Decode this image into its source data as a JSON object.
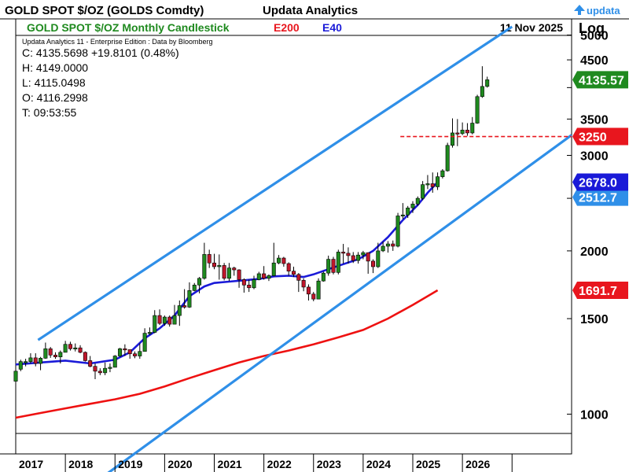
{
  "header": {
    "security_title": "GOLD SPOT $/OZ (GOLDS Comdty)",
    "app_title": "Updata Analytics",
    "logo_text": "updata"
  },
  "subheader": {
    "chart_title": "GOLD SPOT $/OZ Monthly Candlestick",
    "legend_e200": "E200",
    "legend_e40": "E40",
    "date": "11 Nov 2025",
    "scale_label": "Log"
  },
  "info": {
    "edition": "Updata Analytics 11 - Enterprise Edition : Data by Bloomberg",
    "close": "C: 4135.5698  +19.8101 (0.48%)",
    "high": "H: 4149.0000",
    "low": "L: 4115.0498",
    "open": "O: 4116.2998",
    "time": "T: 09:53:55"
  },
  "colors": {
    "up": "#1f8a1f",
    "down": "#c0162b",
    "e200": "#ee1111",
    "e40": "#1a1ad8",
    "channel": "#2f8fe8",
    "price_tag": "#1f8a1f",
    "hline_tag": "#e8161e",
    "e40_tag": "#1a1ad8",
    "channel_tag": "#2f8fe8",
    "e200_tag": "#e8161e",
    "title_green": "#1f8a1f",
    "e200_text": "#e8161e",
    "e40_text": "#1a1ad8"
  },
  "chart_data": {
    "type": "candlestick",
    "scale": "log",
    "ylim": [
      900,
      5500
    ],
    "y_ticks": [
      1000,
      1500,
      2000,
      2500,
      3000,
      3500,
      4000,
      4500,
      5000
    ],
    "y_tick_labels": [
      "1000",
      "1500",
      "2000",
      "",
      "3000",
      "3500",
      "",
      "4500",
      "5000"
    ],
    "x_labels": [
      "2017",
      "2018",
      "2019",
      "2020",
      "2021",
      "2022",
      "2023",
      "2024",
      "2025",
      "2026"
    ],
    "x_start": 2017.0,
    "x_end": 2028.2,
    "last_price": 4135.57,
    "last_price_label": "4135.57",
    "horizontal_line": {
      "value": 3250,
      "label": "3250",
      "x_from": 2024.75
    },
    "e40_last": 2678.0,
    "e40_label": "2678.0",
    "channel_tag_value": 2512.7,
    "channel_tag_label": "2512.7",
    "e200_last": 1691.7,
    "e200_label": "1691.7",
    "channel_upper": [
      [
        2017.45,
        1370
      ],
      [
        2027.0,
        5180
      ]
    ],
    "channel_lower": [
      [
        2018.7,
        760
      ],
      [
        2028.2,
        3270
      ]
    ],
    "e40_points": [
      [
        2017.0,
        1235
      ],
      [
        2017.5,
        1245
      ],
      [
        2018.0,
        1255
      ],
      [
        2018.5,
        1240
      ],
      [
        2019.0,
        1260
      ],
      [
        2019.3,
        1300
      ],
      [
        2019.6,
        1380
      ],
      [
        2019.9,
        1440
      ],
      [
        2020.2,
        1520
      ],
      [
        2020.5,
        1650
      ],
      [
        2020.8,
        1720
      ],
      [
        2021.0,
        1745
      ],
      [
        2021.3,
        1755
      ],
      [
        2021.6,
        1765
      ],
      [
        2021.9,
        1775
      ],
      [
        2022.2,
        1795
      ],
      [
        2022.5,
        1800
      ],
      [
        2022.8,
        1790
      ],
      [
        2023.0,
        1810
      ],
      [
        2023.3,
        1850
      ],
      [
        2023.6,
        1890
      ],
      [
        2023.9,
        1930
      ],
      [
        2024.2,
        2000
      ],
      [
        2024.5,
        2120
      ],
      [
        2024.8,
        2280
      ],
      [
        2025.1,
        2430
      ],
      [
        2025.3,
        2560
      ],
      [
        2025.5,
        2678
      ]
    ],
    "e200_points": [
      [
        2017.0,
        985
      ],
      [
        2017.5,
        1005
      ],
      [
        2018.0,
        1025
      ],
      [
        2018.5,
        1045
      ],
      [
        2019.0,
        1065
      ],
      [
        2019.5,
        1090
      ],
      [
        2020.0,
        1125
      ],
      [
        2020.5,
        1165
      ],
      [
        2021.0,
        1205
      ],
      [
        2021.5,
        1245
      ],
      [
        2022.0,
        1280
      ],
      [
        2022.5,
        1310
      ],
      [
        2023.0,
        1345
      ],
      [
        2023.5,
        1385
      ],
      [
        2024.0,
        1430
      ],
      [
        2024.5,
        1500
      ],
      [
        2025.0,
        1590
      ],
      [
        2025.3,
        1650
      ],
      [
        2025.5,
        1691.7
      ]
    ],
    "candles": [
      [
        2017.0,
        1150,
        1200,
        1140,
        1210
      ],
      [
        2017.1,
        1210,
        1250,
        1200,
        1260
      ],
      [
        2017.2,
        1250,
        1250,
        1225,
        1265
      ],
      [
        2017.3,
        1250,
        1270,
        1240,
        1295
      ],
      [
        2017.4,
        1270,
        1240,
        1225,
        1295
      ],
      [
        2017.5,
        1240,
        1268,
        1205,
        1275
      ],
      [
        2017.6,
        1268,
        1320,
        1265,
        1355
      ],
      [
        2017.7,
        1320,
        1285,
        1270,
        1330
      ],
      [
        2017.8,
        1285,
        1275,
        1265,
        1300
      ],
      [
        2017.9,
        1275,
        1300,
        1240,
        1310
      ],
      [
        2018.0,
        1300,
        1345,
        1300,
        1365
      ],
      [
        2018.1,
        1345,
        1320,
        1310,
        1360
      ],
      [
        2018.2,
        1320,
        1325,
        1305,
        1350
      ],
      [
        2018.3,
        1325,
        1300,
        1295,
        1340
      ],
      [
        2018.4,
        1300,
        1255,
        1250,
        1305
      ],
      [
        2018.5,
        1255,
        1225,
        1220,
        1280
      ],
      [
        2018.6,
        1225,
        1200,
        1160,
        1240
      ],
      [
        2018.7,
        1200,
        1192,
        1180,
        1215
      ],
      [
        2018.8,
        1192,
        1215,
        1180,
        1245
      ],
      [
        2018.9,
        1215,
        1220,
        1195,
        1240
      ],
      [
        2019.0,
        1220,
        1280,
        1220,
        1285
      ],
      [
        2019.1,
        1280,
        1320,
        1275,
        1325
      ],
      [
        2019.2,
        1320,
        1315,
        1280,
        1345
      ],
      [
        2019.3,
        1315,
        1292,
        1265,
        1310
      ],
      [
        2019.4,
        1292,
        1280,
        1268,
        1305
      ],
      [
        2019.5,
        1280,
        1305,
        1265,
        1350
      ],
      [
        2019.6,
        1305,
        1410,
        1305,
        1440
      ],
      [
        2019.7,
        1410,
        1415,
        1400,
        1445
      ],
      [
        2019.8,
        1415,
        1520,
        1410,
        1555
      ],
      [
        2019.9,
        1520,
        1470,
        1460,
        1560
      ],
      [
        2020.0,
        1470,
        1510,
        1455,
        1520
      ],
      [
        2020.1,
        1510,
        1465,
        1450,
        1520
      ],
      [
        2020.2,
        1465,
        1520,
        1465,
        1590
      ],
      [
        2020.3,
        1520,
        1585,
        1455,
        1620
      ],
      [
        2020.4,
        1585,
        1575,
        1565,
        1700
      ],
      [
        2020.5,
        1575,
        1690,
        1570,
        1750
      ],
      [
        2020.6,
        1690,
        1730,
        1685,
        1745
      ],
      [
        2020.7,
        1730,
        1780,
        1670,
        1790
      ],
      [
        2020.8,
        1780,
        1970,
        1770,
        2070
      ],
      [
        2020.9,
        1970,
        1900,
        1860,
        2010
      ],
      [
        2021.0,
        1900,
        1870,
        1850,
        1975
      ],
      [
        2021.1,
        1870,
        1880,
        1770,
        1970
      ],
      [
        2021.2,
        1880,
        1780,
        1765,
        1900
      ],
      [
        2021.3,
        1780,
        1860,
        1760,
        1900
      ],
      [
        2021.4,
        1860,
        1845,
        1800,
        1870
      ],
      [
        2021.5,
        1845,
        1770,
        1710,
        1850
      ],
      [
        2021.6,
        1770,
        1730,
        1675,
        1780
      ],
      [
        2021.7,
        1730,
        1710,
        1680,
        1770
      ],
      [
        2021.8,
        1710,
        1770,
        1700,
        1800
      ],
      [
        2021.9,
        1770,
        1815,
        1765,
        1830
      ],
      [
        2022.0,
        1815,
        1780,
        1770,
        1875
      ],
      [
        2022.1,
        1780,
        1800,
        1760,
        1810
      ],
      [
        2022.2,
        1800,
        1900,
        1795,
        2070
      ],
      [
        2022.3,
        1900,
        1940,
        1890,
        1965
      ],
      [
        2022.4,
        1940,
        1895,
        1870,
        1950
      ],
      [
        2022.5,
        1895,
        1835,
        1800,
        1905
      ],
      [
        2022.6,
        1835,
        1810,
        1790,
        1870
      ],
      [
        2022.7,
        1810,
        1765,
        1680,
        1820
      ],
      [
        2022.8,
        1765,
        1715,
        1685,
        1780
      ],
      [
        2022.9,
        1715,
        1665,
        1620,
        1735
      ],
      [
        2023.0,
        1665,
        1630,
        1615,
        1680
      ],
      [
        2023.1,
        1630,
        1760,
        1630,
        1780
      ],
      [
        2023.2,
        1760,
        1820,
        1755,
        1830
      ],
      [
        2023.3,
        1820,
        1930,
        1800,
        1960
      ],
      [
        2023.4,
        1930,
        1825,
        1810,
        1950
      ],
      [
        2023.5,
        1825,
        1990,
        1810,
        2010
      ],
      [
        2023.6,
        1990,
        1980,
        1895,
        2060
      ],
      [
        2023.7,
        1980,
        1960,
        1895,
        2030
      ],
      [
        2023.8,
        1960,
        1920,
        1900,
        1990
      ],
      [
        2023.9,
        1920,
        1965,
        1895,
        1990
      ],
      [
        2024.0,
        1965,
        1985,
        1930,
        2000
      ],
      [
        2024.1,
        1985,
        1915,
        1815,
        1970
      ],
      [
        2024.2,
        1915,
        1870,
        1820,
        1930
      ],
      [
        2024.3,
        1870,
        2000,
        1860,
        2070
      ],
      [
        2024.4,
        2000,
        2040,
        1990,
        2080
      ],
      [
        2024.5,
        2040,
        2060,
        1985,
        2085
      ],
      [
        2024.6,
        2060,
        2040,
        2000,
        2090
      ],
      [
        2024.7,
        2040,
        2320,
        2030,
        2350
      ],
      [
        2024.8,
        2320,
        2330,
        2290,
        2450
      ],
      [
        2024.9,
        2330,
        2400,
        2300,
        2420
      ],
      [
        2025.0,
        2400,
        2440,
        2350,
        2470
      ],
      [
        2025.1,
        2440,
        2500,
        2420,
        2520
      ],
      [
        2025.2,
        2500,
        2650,
        2480,
        2690
      ],
      [
        2025.3,
        2650,
        2660,
        2600,
        2760
      ],
      [
        2025.4,
        2660,
        2625,
        2560,
        2790
      ],
      [
        2025.5,
        2625,
        2740,
        2590,
        2790
      ],
      [
        2025.6,
        2740,
        2810,
        2720,
        2830
      ],
      [
        2025.7,
        2810,
        3130,
        2800,
        3165
      ],
      [
        2025.8,
        3130,
        3300,
        3100,
        3510
      ],
      [
        2025.9,
        3300,
        3290,
        3120,
        3500
      ],
      [
        2026.0,
        3290,
        3340,
        3270,
        3450
      ],
      [
        2026.1,
        3340,
        3300,
        3260,
        3440
      ],
      [
        2026.2,
        3300,
        3440,
        3280,
        3530
      ],
      [
        2026.3,
        3440,
        3850,
        3430,
        3880
      ],
      [
        2026.4,
        3850,
        4020,
        3830,
        4380
      ],
      [
        2026.5,
        4020,
        4135.57,
        4000,
        4190
      ]
    ]
  }
}
